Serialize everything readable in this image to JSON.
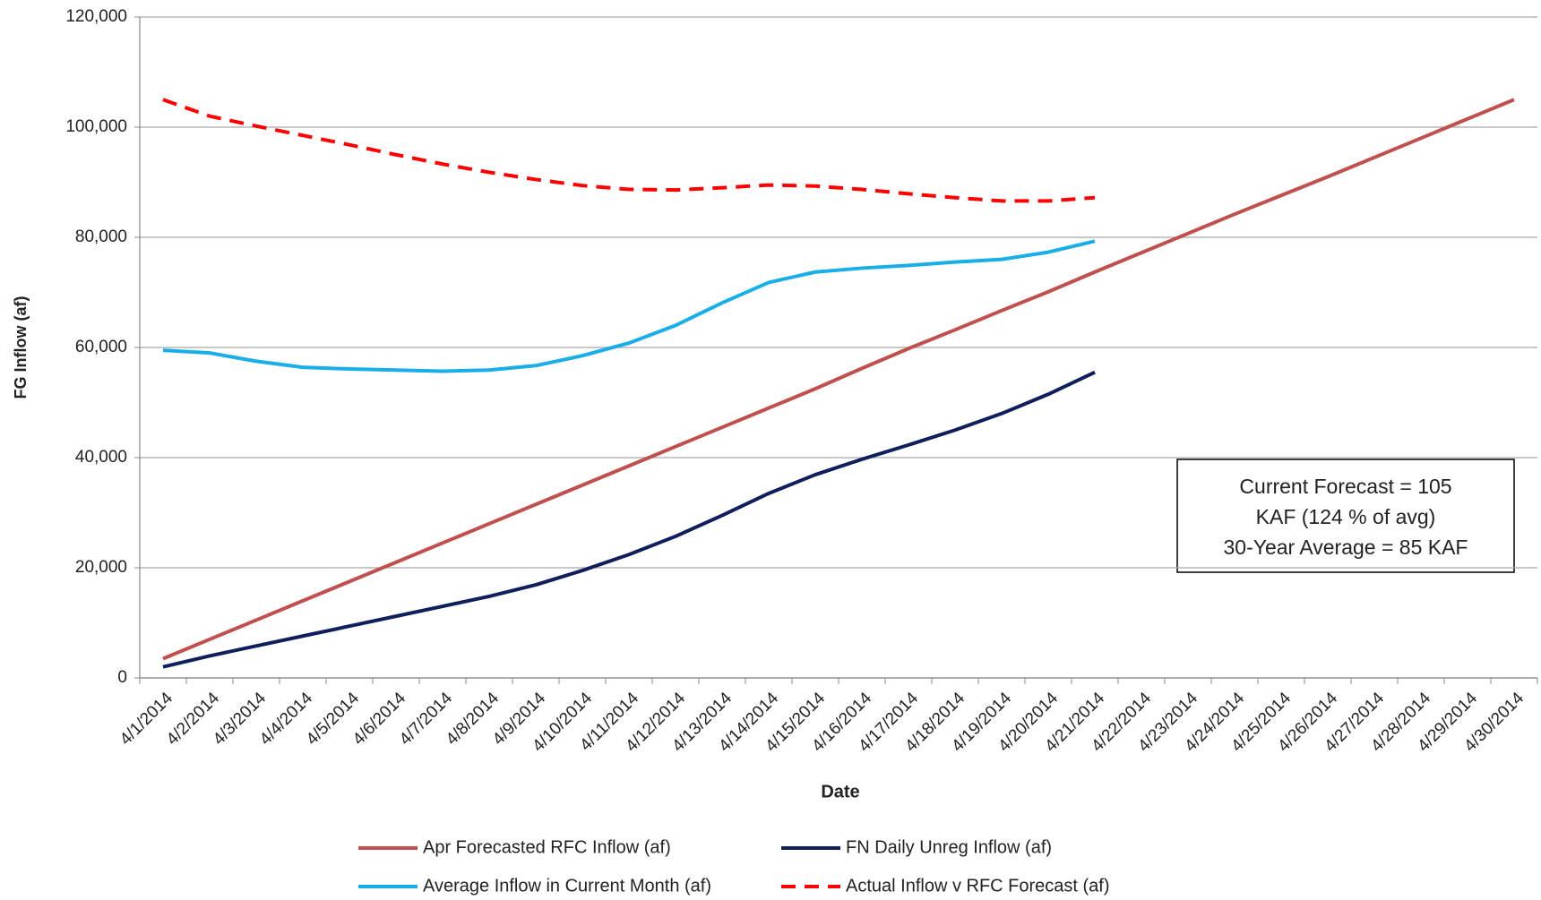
{
  "chart_data": {
    "type": "line",
    "x_label": "Date",
    "y_label": "FG Inflow (af)",
    "categories": [
      "4/1/2014",
      "4/2/2014",
      "4/3/2014",
      "4/4/2014",
      "4/5/2014",
      "4/6/2014",
      "4/7/2014",
      "4/8/2014",
      "4/9/2014",
      "4/10/2014",
      "4/11/2014",
      "4/12/2014",
      "4/13/2014",
      "4/14/2014",
      "4/15/2014",
      "4/16/2014",
      "4/17/2014",
      "4/18/2014",
      "4/19/2014",
      "4/20/2014",
      "4/21/2014",
      "4/22/2014",
      "4/23/2014",
      "4/24/2014",
      "4/25/2014",
      "4/26/2014",
      "4/27/2014",
      "4/28/2014",
      "4/29/2014",
      "4/30/2014"
    ],
    "series": [
      {
        "name": "Apr Forecasted RFC Inflow (af)",
        "color": "#c0504d",
        "linestyle": "solid",
        "values": [
          3500,
          7000,
          10500,
          14000,
          17500,
          21000,
          24500,
          28000,
          31500,
          35000,
          38500,
          42000,
          45500,
          49000,
          52500,
          56200,
          59800,
          63200,
          66700,
          70100,
          73700,
          77200,
          80700,
          84200,
          87600,
          91000,
          94500,
          98000,
          101500,
          105000
        ]
      },
      {
        "name": "FN Daily Unreg Inflow (af)",
        "color": "#0f1f5c",
        "linestyle": "solid",
        "values": [
          2000,
          4000,
          5800,
          7600,
          9400,
          11200,
          13000,
          14800,
          16900,
          19500,
          22400,
          25700,
          29500,
          33500,
          36900,
          39700,
          42300,
          45000,
          48000,
          51500,
          55500,
          null,
          null,
          null,
          null,
          null,
          null,
          null,
          null,
          null
        ]
      },
      {
        "name": "Average Inflow in Current Month (af)",
        "color": "#1aaee8",
        "linestyle": "solid",
        "values": [
          59500,
          59000,
          57500,
          56400,
          56100,
          55900,
          55700,
          55900,
          56700,
          58500,
          60800,
          64000,
          68100,
          71800,
          73700,
          74400,
          74900,
          75500,
          76000,
          77300,
          79300,
          null,
          null,
          null,
          null,
          null,
          null,
          null,
          null,
          null
        ]
      },
      {
        "name": "Actual Inflow v RFC Forecast (af)",
        "color": "#ff0000",
        "linestyle": "dashed",
        "values": [
          105000,
          102000,
          100200,
          98500,
          96800,
          95000,
          93300,
          91800,
          90500,
          89400,
          88700,
          88600,
          89000,
          89500,
          89300,
          88700,
          87900,
          87200,
          86600,
          86600,
          87200,
          null,
          null,
          null,
          null,
          null,
          null,
          null,
          null,
          null
        ]
      }
    ],
    "ylim": [
      0,
      120000
    ],
    "yticks": [
      0,
      {
        "value": 20000,
        "label": "20,000"
      },
      {
        "value": 40000,
        "label": "40,000"
      },
      {
        "value": 60000,
        "label": "60,000"
      },
      {
        "value": 80000,
        "label": "80,000"
      },
      {
        "value": 100000,
        "label": "100,000"
      },
      {
        "value": 120000,
        "label": "120,000"
      }
    ],
    "grid": true,
    "legend": "bottom",
    "annotation_lines": [
      "Current Forecast = 105",
      "KAF (124 % of avg)",
      "30-Year Average = 85 KAF"
    ]
  }
}
